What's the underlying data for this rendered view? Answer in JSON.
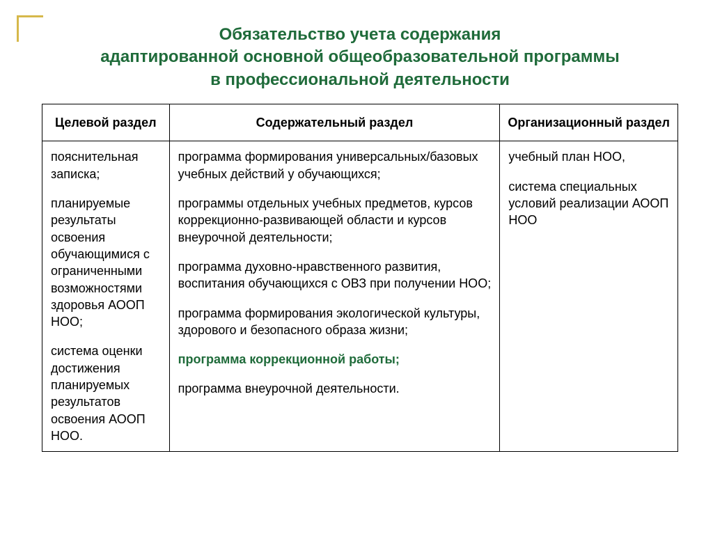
{
  "colors": {
    "title": "#1f6b3a",
    "highlight": "#1f6b3a",
    "accent": "#d6b84a",
    "border": "#000000",
    "text": "#000000",
    "background": "#ffffff"
  },
  "title": {
    "line1": "Обязательство учета содержания",
    "line2": "адаптированной основной общеобразовательной программы",
    "line3": "в профессиональной деятельности"
  },
  "table": {
    "headers": {
      "col1": "Целевой раздел",
      "col2": "Содержательный раздел",
      "col3": "Организационный раздел"
    },
    "body": {
      "col1": {
        "p1": "пояснительная записка;",
        "p2": "планируемые результаты освоения обучающимися с ограниченными возможностями здоровья АООП НОО;",
        "p3": "система оценки достижения планируемых результатов освоения АООП НОО."
      },
      "col2": {
        "p1": "программа формирования универсальных/базовых учебных действий у обучающихся;",
        "p2": "программы отдельных учебных предметов, курсов коррекционно-развивающей области и курсов внеурочной деятельности;",
        "p3": "программа духовно-нравственного развития, воспитания обучающихся с ОВЗ при получении НОО;",
        "p4": "программа формирования экологической культуры, здорового и безопасного образа жизни;",
        "p5": "программа коррекционной работы;",
        "p6": "программа внеурочной деятельности."
      },
      "col3": {
        "p1": "учебный план НОО,",
        "p2": "система специальных условий реализации АООП НОО"
      }
    }
  }
}
